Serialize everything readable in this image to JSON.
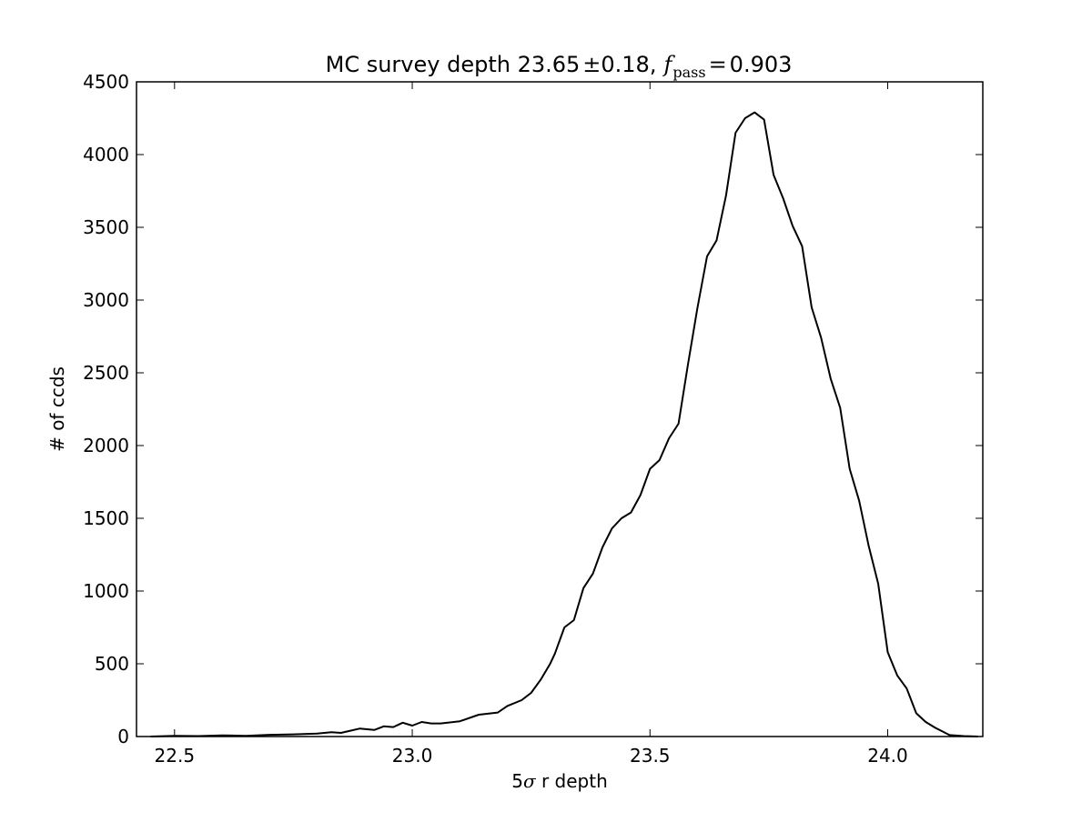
{
  "chart_data": {
    "type": "line",
    "title": {
      "prefix": "MC survey depth 23.65",
      "pm": "±",
      "spread": "0.18,",
      "f_symbol": "f",
      "f_subscript": "pass",
      "equals": "=",
      "f_value": "0.903"
    },
    "xlabel": {
      "prefix": "5",
      "sigma": "σ",
      "suffix": " r depth"
    },
    "ylabel": "# of ccds",
    "xlim": [
      22.42,
      24.2
    ],
    "ylim": [
      0,
      4500
    ],
    "xticks": [
      {
        "value": 22.5,
        "label": "22.5"
      },
      {
        "value": 23.0,
        "label": "23.0"
      },
      {
        "value": 23.5,
        "label": "23.5"
      },
      {
        "value": 24.0,
        "label": "24.0"
      }
    ],
    "yticks": [
      {
        "value": 0,
        "label": "0"
      },
      {
        "value": 500,
        "label": "500"
      },
      {
        "value": 1000,
        "label": "1000"
      },
      {
        "value": 1500,
        "label": "1500"
      },
      {
        "value": 2000,
        "label": "2000"
      },
      {
        "value": 2500,
        "label": "2500"
      },
      {
        "value": 3000,
        "label": "3000"
      },
      {
        "value": 3500,
        "label": "3500"
      },
      {
        "value": 4000,
        "label": "4000"
      },
      {
        "value": 4500,
        "label": "4500"
      }
    ],
    "grid": false,
    "line_color": "#000000",
    "series": [
      {
        "x": [
          22.45,
          22.5,
          22.55,
          22.6,
          22.65,
          22.7,
          22.75,
          22.8,
          22.83,
          22.85,
          22.89,
          22.92,
          22.94,
          22.96,
          22.98,
          23.0,
          23.02,
          23.04,
          23.06,
          23.1,
          23.14,
          23.18,
          23.2,
          23.23,
          23.25,
          23.27,
          23.29,
          23.3,
          23.32,
          23.34,
          23.36,
          23.38,
          23.4,
          23.42,
          23.44,
          23.46,
          23.48,
          23.5,
          23.52,
          23.54,
          23.56,
          23.58,
          23.6,
          23.62,
          23.64,
          23.66,
          23.68,
          23.7,
          23.72,
          23.74,
          23.76,
          23.78,
          23.8,
          23.82,
          23.84,
          23.86,
          23.88,
          23.9,
          23.92,
          23.94,
          23.96,
          23.98,
          24.0,
          24.02,
          24.04,
          24.06,
          24.08,
          24.1,
          24.13,
          24.16,
          24.19
        ],
        "y": [
          0,
          5,
          3,
          8,
          5,
          12,
          15,
          20,
          30,
          25,
          55,
          45,
          70,
          65,
          95,
          75,
          100,
          90,
          90,
          105,
          150,
          165,
          210,
          250,
          300,
          390,
          500,
          570,
          750,
          800,
          1020,
          1120,
          1300,
          1430,
          1500,
          1540,
          1660,
          1840,
          1900,
          2050,
          2150,
          2560,
          2950,
          3300,
          3410,
          3720,
          4150,
          4250,
          4290,
          4240,
          3860,
          3700,
          3510,
          3370,
          2950,
          2740,
          2460,
          2260,
          1840,
          1620,
          1310,
          1050,
          580,
          420,
          330,
          160,
          100,
          60,
          10,
          3,
          0
        ]
      }
    ]
  }
}
